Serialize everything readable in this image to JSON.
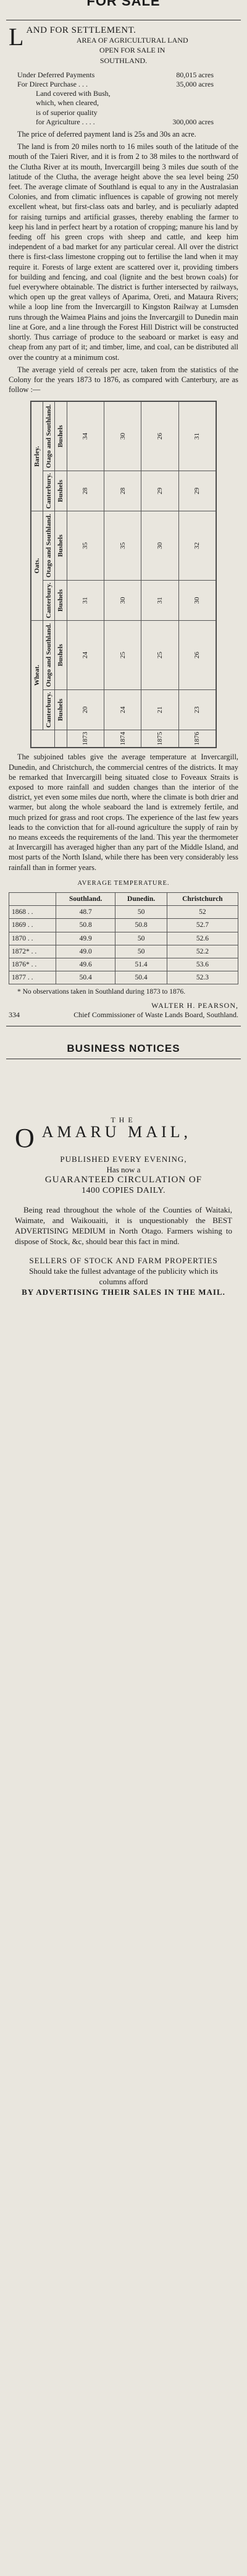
{
  "header": {
    "title": "FOR SALE"
  },
  "land_ad": {
    "dropcap": "L",
    "headline": "AND FOR SETTLEMENT.",
    "subhead_1": "AREA OF AGRICULTURAL LAND",
    "subhead_2": "OPEN FOR SALE IN",
    "subhead_3": "SOUTHLAND.",
    "prices": [
      {
        "label": "Under Deferred Payments",
        "value": "80,015 acres"
      },
      {
        "label": "For Direct Purchase . . .",
        "value": "35,000 acres"
      },
      {
        "label": "Land covered with Bush,",
        "value": ""
      },
      {
        "label": "which, when cleared,",
        "value": ""
      },
      {
        "label": "is of superior quality",
        "value": ""
      },
      {
        "label": "for Agriculture . . . .",
        "value": "300,000 acres"
      }
    ],
    "price_note": "The price of deferred payment land is 25s and 30s an acre.",
    "body_1": "The land is from 20 miles north to 16 miles south of the latitude of the mouth of the Taieri River, and it is from 2 to 38 miles to the northward of the Clutha River at its mouth, Invercargill being 3 miles due south of the latitude of the Clutha, the average height above the sea level being 250 feet. The average climate of Southland is equal to any in the Australasian Colonies, and from climatic influences is capable of growing not merely excellent wheat, but first-class oats and barley, and is peculiarly adapted for raising turnips and artificial grasses, thereby enabling the farmer to keep his land in perfect heart by a rotation of cropping; manure his land by feeding off his green crops with sheep and cattle, and keep him independent of a bad market for any particular cereal. All over the district there is first-class limestone cropping out to fertilise the land when it may require it. Forests of large extent are scattered over it, providing timbers for building and fencing, and coal (lignite and the best brown coals) for fuel everywhere obtainable. The district is further intersected by railways, which open up the great valleys of Aparima, Oreti, and Mataura Rivers; while a loop line from the Invercargill to Kingston Railway at Lumsden runs through the Waimea Plains and joins the Invercargill to Dunedin main line at Gore, and a line through the Forest Hill District will be constructed shortly. Thus carriage of produce to the seaboard or market is easy and cheap from any part of it; and timber, lime, and coal, can be distributed all over the country at a minimum cost.",
    "body_2": "The average yield of cereals per acre, taken from the statistics of the Colony for the years 1873 to 1876, as compared with Canterbury, are as follow :—",
    "yield_table": {
      "crops": [
        "Wheat.",
        "Oats.",
        "Barley."
      ],
      "sub_cols": [
        "Canterbury.",
        "Otago and Southland."
      ],
      "unit": "Bushels",
      "years": [
        "1873",
        "1874",
        "1875",
        "1876"
      ],
      "rows": [
        [
          "20",
          "24",
          "31",
          "35",
          "28",
          "34"
        ],
        [
          "24",
          "25",
          "30",
          "35",
          "28",
          "30"
        ],
        [
          "21",
          "25",
          "31",
          "30",
          "29",
          "26"
        ],
        [
          "23",
          "26",
          "30",
          "32",
          "29",
          "31"
        ]
      ]
    },
    "body_3": "The subjoined tables give the average temperature at Invercargill, Dunedin, and Christchurch, the commercial centres of the districts. It may be remarked that Invercargill being situated close to Foveaux Straits is exposed to more rainfall and sudden changes than the interior of the district, yet even some miles due north, where the climate is both drier and warmer, but along the whole seaboard the land is extremely fertile, and much prized for grass and root crops. The experience of the last few years leads to the conviction that for all-round agriculture the supply of rain by no means exceeds the requirements of the land. This year the thermometer at Invercargill has averaged higher than any part of the Middle Island, and most parts of the North Island, while there has been very considerably less rainfall than in former years.",
    "temp_title": "AVERAGE TEMPERATURE.",
    "temp_headers": [
      "",
      "Southland.",
      "Dunedin.",
      "Christchurch"
    ],
    "temp_rows": [
      [
        "1868 . .",
        "48.7",
        "50",
        "52"
      ],
      [
        "1869 . .",
        "50.8",
        "50.8",
        "52.7"
      ],
      [
        "1870 . .",
        "49.9",
        "50",
        "52.6"
      ],
      [
        "1872* . .",
        "49.0",
        "50",
        "52.2"
      ],
      [
        "1876* . .",
        "49.6",
        "51.4",
        "53.6"
      ],
      [
        "1877 . .",
        "50.4",
        "50.4",
        "52.3"
      ]
    ],
    "footnote": "* No observations taken in Southland during 1873 to 1876.",
    "signature_name": "WALTER H. PEARSON,",
    "signature_title": "Chief Commissioner of Waste Lands Board, Southland.",
    "ref_number": "334"
  },
  "business": {
    "title": "BUSINESS NOTICES"
  },
  "mail_ad": {
    "the": "THE",
    "title_big": "O",
    "title_rest": "AMARU MAIL,",
    "published": "PUBLISHED EVERY EVENING,",
    "has_now": "Has now a",
    "guaranteed": "GUARANTEED CIRCULATION OF",
    "copies": "1400 COPIES DAILY.",
    "body_1": "Being read throughout the whole of the Counties of Waitaki, Waimate, and Waikouaiti, it is unquestionably the BEST ADVERTISING MEDIUM in North Otago. Farmers wishing to dispose of Stock, &c, should bear this fact in mind.",
    "sellers": "SELLERS OF STOCK AND FARM PROPERTIES",
    "body_2": "Should take the fullest advantage of the publicity which its columns afford",
    "closing": "BY ADVERTISING THEIR SALES IN THE MAIL."
  }
}
